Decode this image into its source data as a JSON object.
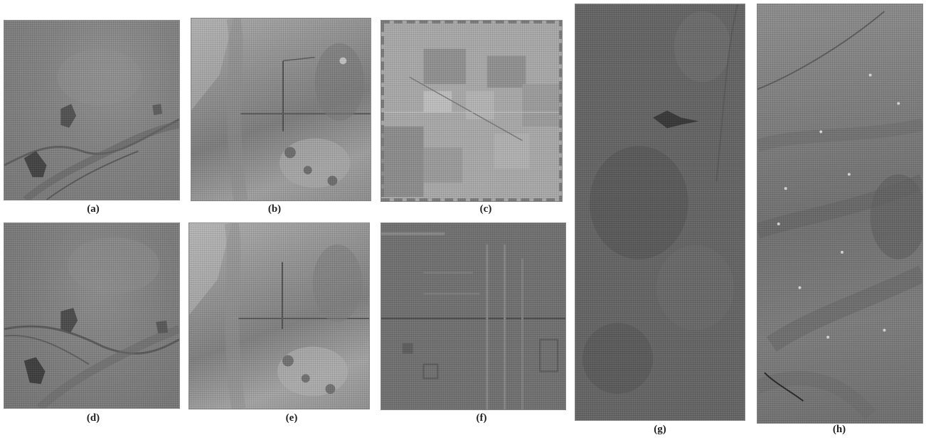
{
  "figure": {
    "panels": [
      {
        "id": "a",
        "caption": "(a)"
      },
      {
        "id": "b",
        "caption": "(b)"
      },
      {
        "id": "c",
        "caption": "(c)"
      },
      {
        "id": "d",
        "caption": "(d)"
      },
      {
        "id": "e",
        "caption": "(e)"
      },
      {
        "id": "f",
        "caption": "(f)"
      },
      {
        "id": "g",
        "caption": "(g)"
      },
      {
        "id": "h",
        "caption": "(h)"
      }
    ]
  }
}
